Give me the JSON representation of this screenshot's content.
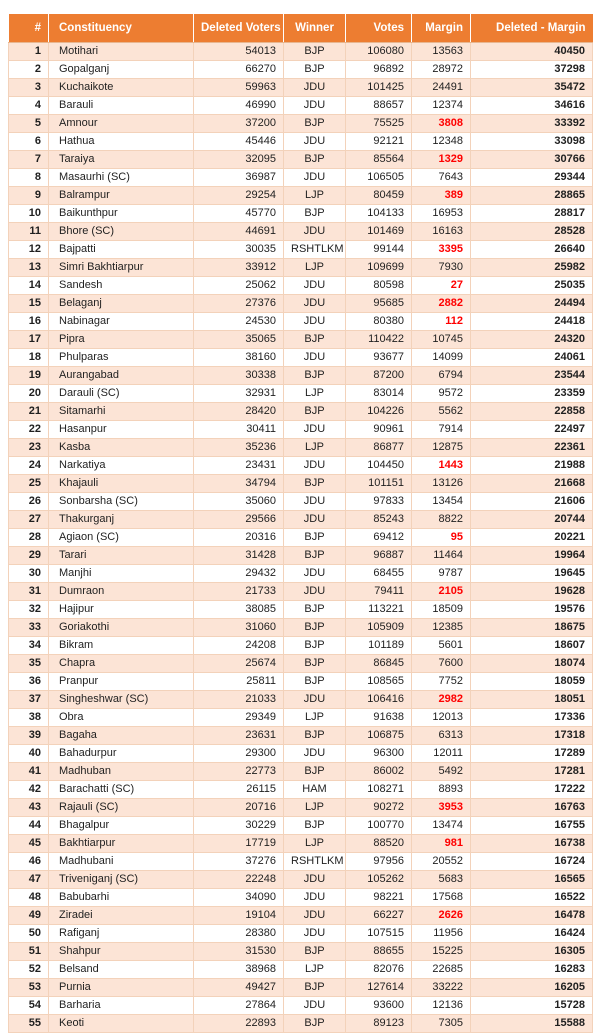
{
  "colors": {
    "header_bg": "#ED7D31",
    "header_text": "#FFFFFF",
    "row_stripe_bg": "#FCE4D6",
    "row_bg": "#FFFFFF",
    "grid_line": "#F3D2BA",
    "alert_red": "#FF0000",
    "body_text": "#1F1F1F"
  },
  "table": {
    "columns": {
      "rank": "#",
      "constituency": "Constituency",
      "deleted": "Deleted Voters",
      "winner": "Winner",
      "votes": "Votes",
      "margin": "Margin",
      "diff": "Deleted - Margin"
    },
    "rows": [
      {
        "rank": 1,
        "constituency": "Motihari",
        "deleted": 54013,
        "winner": "BJP",
        "votes": 106080,
        "margin": 13563,
        "margin_red": false,
        "diff": 40450
      },
      {
        "rank": 2,
        "constituency": "Gopalganj",
        "deleted": 66270,
        "winner": "BJP",
        "votes": 96892,
        "margin": 28972,
        "margin_red": false,
        "diff": 37298
      },
      {
        "rank": 3,
        "constituency": "Kuchaikote",
        "deleted": 59963,
        "winner": "JDU",
        "votes": 101425,
        "margin": 24491,
        "margin_red": false,
        "diff": 35472
      },
      {
        "rank": 4,
        "constituency": "Barauli",
        "deleted": 46990,
        "winner": "JDU",
        "votes": 88657,
        "margin": 12374,
        "margin_red": false,
        "diff": 34616
      },
      {
        "rank": 5,
        "constituency": "Amnour",
        "deleted": 37200,
        "winner": "BJP",
        "votes": 75525,
        "margin": 3808,
        "margin_red": true,
        "diff": 33392
      },
      {
        "rank": 6,
        "constituency": "Hathua",
        "deleted": 45446,
        "winner": "JDU",
        "votes": 92121,
        "margin": 12348,
        "margin_red": false,
        "diff": 33098
      },
      {
        "rank": 7,
        "constituency": "Taraiya",
        "deleted": 32095,
        "winner": "BJP",
        "votes": 85564,
        "margin": 1329,
        "margin_red": true,
        "diff": 30766
      },
      {
        "rank": 8,
        "constituency": "Masaurhi (SC)",
        "deleted": 36987,
        "winner": "JDU",
        "votes": 106505,
        "margin": 7643,
        "margin_red": false,
        "diff": 29344
      },
      {
        "rank": 9,
        "constituency": "Balrampur",
        "deleted": 29254,
        "winner": "LJP",
        "votes": 80459,
        "margin": 389,
        "margin_red": true,
        "diff": 28865
      },
      {
        "rank": 10,
        "constituency": "Baikunthpur",
        "deleted": 45770,
        "winner": "BJP",
        "votes": 104133,
        "margin": 16953,
        "margin_red": false,
        "diff": 28817
      },
      {
        "rank": 11,
        "constituency": "Bhore (SC)",
        "deleted": 44691,
        "winner": "JDU",
        "votes": 101469,
        "margin": 16163,
        "margin_red": false,
        "diff": 28528
      },
      {
        "rank": 12,
        "constituency": "Bajpatti",
        "deleted": 30035,
        "winner": "RSHTLKM",
        "votes": 99144,
        "margin": 3395,
        "margin_red": true,
        "diff": 26640
      },
      {
        "rank": 13,
        "constituency": "Simri Bakhtiarpur",
        "deleted": 33912,
        "winner": "LJP",
        "votes": 109699,
        "margin": 7930,
        "margin_red": false,
        "diff": 25982
      },
      {
        "rank": 14,
        "constituency": "Sandesh",
        "deleted": 25062,
        "winner": "JDU",
        "votes": 80598,
        "margin": 27,
        "margin_red": true,
        "diff": 25035
      },
      {
        "rank": 15,
        "constituency": "Belaganj",
        "deleted": 27376,
        "winner": "JDU",
        "votes": 95685,
        "margin": 2882,
        "margin_red": true,
        "diff": 24494
      },
      {
        "rank": 16,
        "constituency": "Nabinagar",
        "deleted": 24530,
        "winner": "JDU",
        "votes": 80380,
        "margin": 112,
        "margin_red": true,
        "diff": 24418
      },
      {
        "rank": 17,
        "constituency": "Pipra",
        "deleted": 35065,
        "winner": "BJP",
        "votes": 110422,
        "margin": 10745,
        "margin_red": false,
        "diff": 24320
      },
      {
        "rank": 18,
        "constituency": "Phulparas",
        "deleted": 38160,
        "winner": "JDU",
        "votes": 93677,
        "margin": 14099,
        "margin_red": false,
        "diff": 24061
      },
      {
        "rank": 19,
        "constituency": "Aurangabad",
        "deleted": 30338,
        "winner": "BJP",
        "votes": 87200,
        "margin": 6794,
        "margin_red": false,
        "diff": 23544
      },
      {
        "rank": 20,
        "constituency": "Darauli (SC)",
        "deleted": 32931,
        "winner": "LJP",
        "votes": 83014,
        "margin": 9572,
        "margin_red": false,
        "diff": 23359
      },
      {
        "rank": 21,
        "constituency": "Sitamarhi",
        "deleted": 28420,
        "winner": "BJP",
        "votes": 104226,
        "margin": 5562,
        "margin_red": false,
        "diff": 22858
      },
      {
        "rank": 22,
        "constituency": "Hasanpur",
        "deleted": 30411,
        "winner": "JDU",
        "votes": 90961,
        "margin": 7914,
        "margin_red": false,
        "diff": 22497
      },
      {
        "rank": 23,
        "constituency": "Kasba",
        "deleted": 35236,
        "winner": "LJP",
        "votes": 86877,
        "margin": 12875,
        "margin_red": false,
        "diff": 22361
      },
      {
        "rank": 24,
        "constituency": "Narkatiya",
        "deleted": 23431,
        "winner": "JDU",
        "votes": 104450,
        "margin": 1443,
        "margin_red": true,
        "diff": 21988
      },
      {
        "rank": 25,
        "constituency": "Khajauli",
        "deleted": 34794,
        "winner": "BJP",
        "votes": 101151,
        "margin": 13126,
        "margin_red": false,
        "diff": 21668
      },
      {
        "rank": 26,
        "constituency": "Sonbarsha (SC)",
        "deleted": 35060,
        "winner": "JDU",
        "votes": 97833,
        "margin": 13454,
        "margin_red": false,
        "diff": 21606
      },
      {
        "rank": 27,
        "constituency": "Thakurganj",
        "deleted": 29566,
        "winner": "JDU",
        "votes": 85243,
        "margin": 8822,
        "margin_red": false,
        "diff": 20744
      },
      {
        "rank": 28,
        "constituency": "Agiaon (SC)",
        "deleted": 20316,
        "winner": "BJP",
        "votes": 69412,
        "margin": 95,
        "margin_red": true,
        "diff": 20221
      },
      {
        "rank": 29,
        "constituency": "Tarari",
        "deleted": 31428,
        "winner": "BJP",
        "votes": 96887,
        "margin": 11464,
        "margin_red": false,
        "diff": 19964
      },
      {
        "rank": 30,
        "constituency": "Manjhi",
        "deleted": 29432,
        "winner": "JDU",
        "votes": 68455,
        "margin": 9787,
        "margin_red": false,
        "diff": 19645
      },
      {
        "rank": 31,
        "constituency": "Dumraon",
        "deleted": 21733,
        "winner": "JDU",
        "votes": 79411,
        "margin": 2105,
        "margin_red": true,
        "diff": 19628
      },
      {
        "rank": 32,
        "constituency": "Hajipur",
        "deleted": 38085,
        "winner": "BJP",
        "votes": 113221,
        "margin": 18509,
        "margin_red": false,
        "diff": 19576
      },
      {
        "rank": 33,
        "constituency": "Goriakothi",
        "deleted": 31060,
        "winner": "BJP",
        "votes": 105909,
        "margin": 12385,
        "margin_red": false,
        "diff": 18675
      },
      {
        "rank": 34,
        "constituency": "Bikram",
        "deleted": 24208,
        "winner": "BJP",
        "votes": 101189,
        "margin": 5601,
        "margin_red": false,
        "diff": 18607
      },
      {
        "rank": 35,
        "constituency": "Chapra",
        "deleted": 25674,
        "winner": "BJP",
        "votes": 86845,
        "margin": 7600,
        "margin_red": false,
        "diff": 18074
      },
      {
        "rank": 36,
        "constituency": "Pranpur",
        "deleted": 25811,
        "winner": "BJP",
        "votes": 108565,
        "margin": 7752,
        "margin_red": false,
        "diff": 18059
      },
      {
        "rank": 37,
        "constituency": "Singheshwar (SC)",
        "deleted": 21033,
        "winner": "JDU",
        "votes": 106416,
        "margin": 2982,
        "margin_red": true,
        "diff": 18051
      },
      {
        "rank": 38,
        "constituency": "Obra",
        "deleted": 29349,
        "winner": "LJP",
        "votes": 91638,
        "margin": 12013,
        "margin_red": false,
        "diff": 17336
      },
      {
        "rank": 39,
        "constituency": "Bagaha",
        "deleted": 23631,
        "winner": "BJP",
        "votes": 106875,
        "margin": 6313,
        "margin_red": false,
        "diff": 17318
      },
      {
        "rank": 40,
        "constituency": "Bahadurpur",
        "deleted": 29300,
        "winner": "JDU",
        "votes": 96300,
        "margin": 12011,
        "margin_red": false,
        "diff": 17289
      },
      {
        "rank": 41,
        "constituency": "Madhuban",
        "deleted": 22773,
        "winner": "BJP",
        "votes": 86002,
        "margin": 5492,
        "margin_red": false,
        "diff": 17281
      },
      {
        "rank": 42,
        "constituency": "Barachatti (SC)",
        "deleted": 26115,
        "winner": "HAM",
        "votes": 108271,
        "margin": 8893,
        "margin_red": false,
        "diff": 17222
      },
      {
        "rank": 43,
        "constituency": "Rajauli (SC)",
        "deleted": 20716,
        "winner": "LJP",
        "votes": 90272,
        "margin": 3953,
        "margin_red": true,
        "diff": 16763
      },
      {
        "rank": 44,
        "constituency": "Bhagalpur",
        "deleted": 30229,
        "winner": "BJP",
        "votes": 100770,
        "margin": 13474,
        "margin_red": false,
        "diff": 16755
      },
      {
        "rank": 45,
        "constituency": "Bakhtiarpur",
        "deleted": 17719,
        "winner": "LJP",
        "votes": 88520,
        "margin": 981,
        "margin_red": true,
        "diff": 16738
      },
      {
        "rank": 46,
        "constituency": "Madhubani",
        "deleted": 37276,
        "winner": "RSHTLKM",
        "votes": 97956,
        "margin": 20552,
        "margin_red": false,
        "diff": 16724
      },
      {
        "rank": 47,
        "constituency": "Triveniganj (SC)",
        "deleted": 22248,
        "winner": "JDU",
        "votes": 105262,
        "margin": 5683,
        "margin_red": false,
        "diff": 16565
      },
      {
        "rank": 48,
        "constituency": "Babubarhi",
        "deleted": 34090,
        "winner": "JDU",
        "votes": 98221,
        "margin": 17568,
        "margin_red": false,
        "diff": 16522
      },
      {
        "rank": 49,
        "constituency": "Ziradei",
        "deleted": 19104,
        "winner": "JDU",
        "votes": 66227,
        "margin": 2626,
        "margin_red": true,
        "diff": 16478
      },
      {
        "rank": 50,
        "constituency": "Rafiganj",
        "deleted": 28380,
        "winner": "JDU",
        "votes": 107515,
        "margin": 11956,
        "margin_red": false,
        "diff": 16424
      },
      {
        "rank": 51,
        "constituency": "Shahpur",
        "deleted": 31530,
        "winner": "BJP",
        "votes": 88655,
        "margin": 15225,
        "margin_red": false,
        "diff": 16305
      },
      {
        "rank": 52,
        "constituency": "Belsand",
        "deleted": 38968,
        "winner": "LJP",
        "votes": 82076,
        "margin": 22685,
        "margin_red": false,
        "diff": 16283
      },
      {
        "rank": 53,
        "constituency": "Purnia",
        "deleted": 49427,
        "winner": "BJP",
        "votes": 127614,
        "margin": 33222,
        "margin_red": false,
        "diff": 16205
      },
      {
        "rank": 54,
        "constituency": "Barharia",
        "deleted": 27864,
        "winner": "JDU",
        "votes": 93600,
        "margin": 12136,
        "margin_red": false,
        "diff": 15728
      },
      {
        "rank": 55,
        "constituency": "Keoti",
        "deleted": 22893,
        "winner": "BJP",
        "votes": 89123,
        "margin": 7305,
        "margin_red": false,
        "diff": 15588
      }
    ]
  }
}
